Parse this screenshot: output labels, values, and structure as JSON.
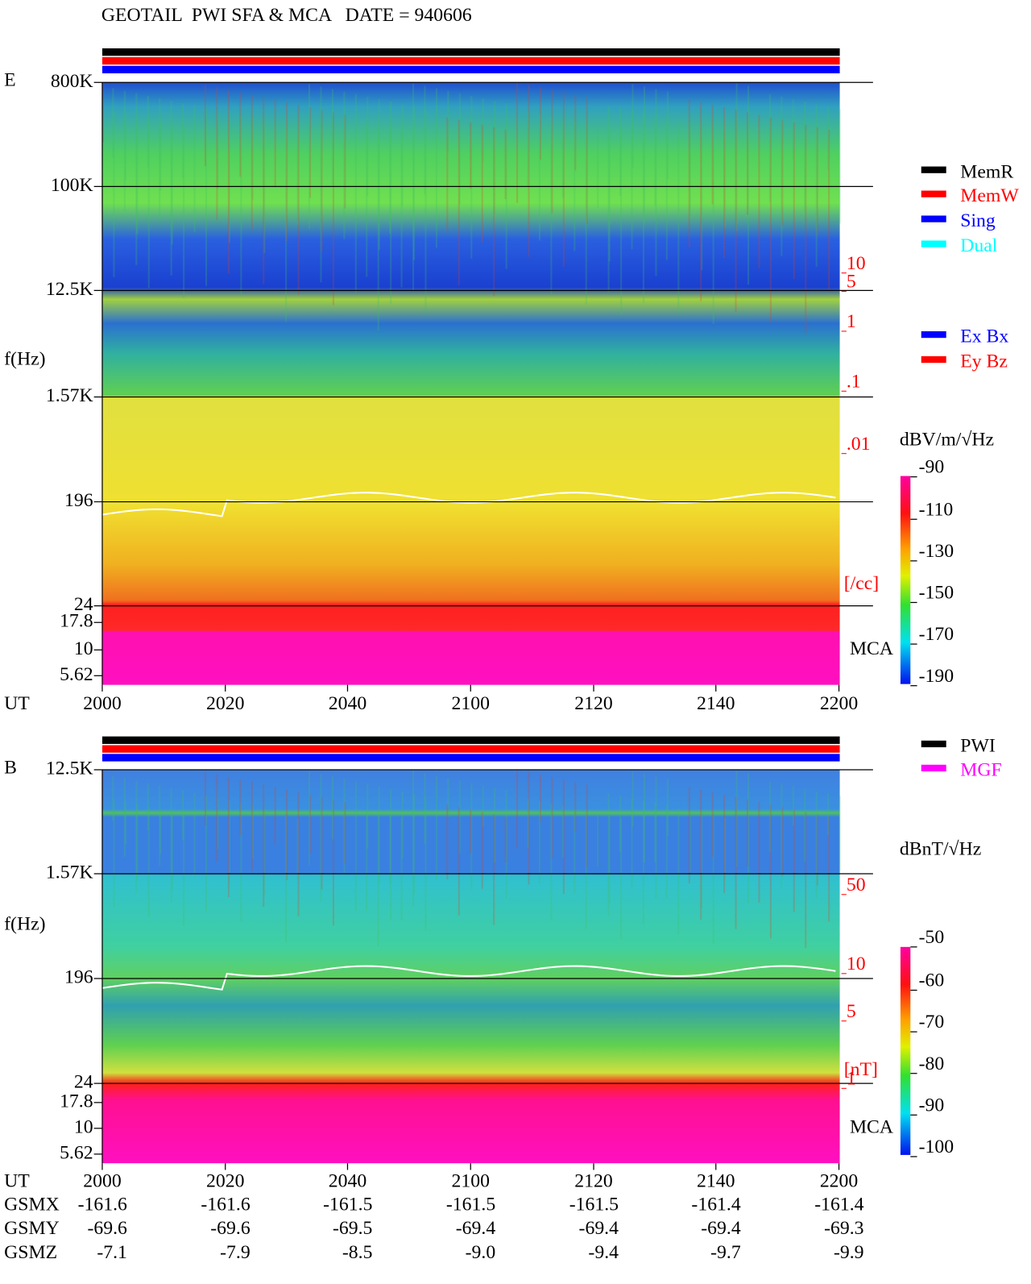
{
  "title": "GEOTAIL  PWI SFA & MCA   DATE = 940606",
  "panels": [
    {
      "label": "E",
      "y_label": "f(Hz)",
      "y_ticks": [
        "800K",
        "100K",
        "12.5K",
        "1.57K",
        "196",
        "24",
        "17.8",
        "10",
        "5.62"
      ],
      "density_ticks": [
        "10",
        "5",
        "1",
        ".1",
        ".01"
      ],
      "density_unit": "[/cc]",
      "mca_label": "MCA",
      "x_label": "UT",
      "x_ticks": [
        "2000",
        "2020",
        "2040",
        "2100",
        "2120",
        "2140",
        "2200"
      ],
      "colorbar_title": "dBV/m/√Hz",
      "colorbar_ticks": [
        "-90",
        "-110",
        "-130",
        "-150",
        "-170",
        "-190"
      ],
      "legend": [
        {
          "label": "MemR",
          "color": "#000000"
        },
        {
          "label": "MemW",
          "color": "#ff0000"
        },
        {
          "label": "Sing",
          "color": "#0000ff"
        },
        {
          "label": "Dual",
          "color": "#00ffff"
        },
        {
          "label": "Ex Bx",
          "color": "#0000ff"
        },
        {
          "label": "Ey Bz",
          "color": "#ff0000"
        }
      ]
    },
    {
      "label": "B",
      "y_label": "f(Hz)",
      "y_ticks": [
        "12.5K",
        "1.57K",
        "196",
        "24",
        "17.8",
        "10",
        "5.62"
      ],
      "density_ticks": [
        "50",
        "10",
        "5",
        "1"
      ],
      "density_unit": "[nT]",
      "mca_label": "MCA",
      "x_label": "UT",
      "x_ticks": [
        "2000",
        "2020",
        "2040",
        "2100",
        "2120",
        "2140",
        "2200"
      ],
      "colorbar_title": "dBnT/√Hz",
      "colorbar_ticks": [
        "-50",
        "-60",
        "-70",
        "-80",
        "-90",
        "-100"
      ],
      "legend": [
        {
          "label": "PWI",
          "color": "#000000"
        },
        {
          "label": "MGF",
          "color": "#ff00ff"
        }
      ]
    }
  ],
  "orbit": [
    {
      "label": "GSMX",
      "values": [
        "-161.6",
        "-161.6",
        "-161.5",
        "-161.5",
        "-161.5",
        "-161.4",
        "-161.4"
      ]
    },
    {
      "label": "GSMY",
      "values": [
        "-69.6",
        "-69.6",
        "-69.5",
        "-69.4",
        "-69.4",
        "-69.4",
        "-69.3"
      ]
    },
    {
      "label": "GSMZ",
      "values": [
        "-7.1",
        "-7.9",
        "-8.5",
        "-9.0",
        "-9.4",
        "-9.7",
        "-9.9"
      ]
    }
  ]
}
